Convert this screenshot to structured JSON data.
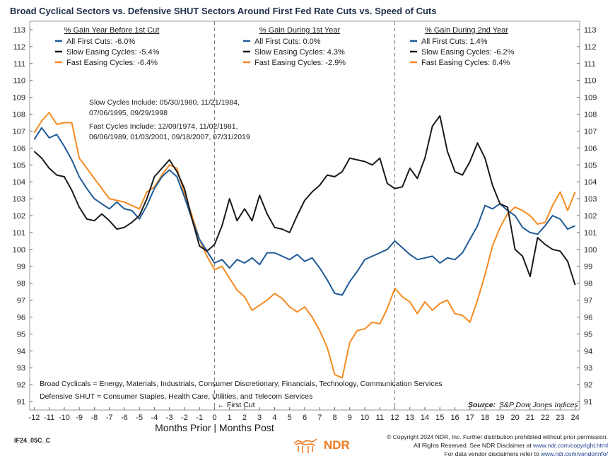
{
  "title": "Broad Cyclical Sectors vs. Defensive SHUT Sectors Around First Fed Rate Cuts vs. Speed of Cuts",
  "colors": {
    "all_first_cuts": "#1f5a96",
    "slow_easing": "#1a1a1a",
    "fast_easing": "#f68a1f",
    "title": "#1f2f4a",
    "dashed_line": "#7a7a7a"
  },
  "legend_blocks": [
    {
      "heading": "% Gain Year Before 1st Cut",
      "entries": [
        {
          "label": "All First Cuts: -6.0%"
        },
        {
          "label": "Slow Easing Cycles: -5.4%"
        },
        {
          "label": "Fast Easing Cycles: -6.4%"
        }
      ]
    },
    {
      "heading": "% Gain During 1st Year",
      "entries": [
        {
          "label": "All First Cuts: 0.0%"
        },
        {
          "label": "Slow Easing Cycles: 4.3%"
        },
        {
          "label": "Fast Easing Cycles: -2.9%"
        }
      ]
    },
    {
      "heading": "% Gain During 2nd Year",
      "entries": [
        {
          "label": "All First Cuts: 1.4%"
        },
        {
          "label": "Slow Easing Cycles: -6.2%"
        },
        {
          "label": "Fast Easing Cycles: 6.4%"
        }
      ]
    }
  ],
  "notes": {
    "slow_cycles": [
      "Slow Cycles Include: 05/30/1980, 11/21/1984,",
      "07/06/1995, 09/29/1998"
    ],
    "fast_cycles": [
      "Fast Cycles Include: 12/09/1974, 11/02/1981,",
      "06/06/1989, 01/03/2001, 09/18/2007, 07/31/2019"
    ],
    "broad_cyclicals": "Broad Cyclicals = Energy, Materials, Industrials, Consumer Discretionary, Financials, Technology, Communication Services",
    "defensive_shut": "Defensive SHUT = Consumer Staples, Health Care, Utilities, and Telecom Services",
    "first_cut": "← First Cut",
    "source_label": "Source:",
    "source_value": "S&P Dow Jones Indices"
  },
  "xlabel": "Months Prior | Months Post",
  "footer": {
    "code": "IF24_05C_C",
    "logo_text": "NDR",
    "copyright_lines": [
      "© Copyright 2024 NDR, Inc. Further distribution prohibited without prior permission.",
      "All Rights Reserved. See NDR Disclaimer at ",
      "For data vendor disclaimers refer to "
    ],
    "links": [
      "www.ndr.com/copyright.html",
      "www.ndr.com/vendorinfo/"
    ]
  },
  "chart_data": {
    "type": "line",
    "title": "Broad Cyclical Sectors vs. Defensive SHUT Sectors Around First Fed Rate Cuts vs. Speed of Cuts",
    "xlabel": "Months Prior | Months Post",
    "ylabel": "",
    "xlim": [
      -12.3,
      24.3
    ],
    "ylim": [
      90.5,
      113.5
    ],
    "x_ticks": [
      -12,
      -11,
      -10,
      -9,
      -8,
      -7,
      -6,
      -5,
      -4,
      -3,
      -2,
      -1,
      0,
      1,
      2,
      3,
      4,
      5,
      6,
      7,
      8,
      9,
      10,
      11,
      12,
      13,
      14,
      15,
      16,
      17,
      18,
      19,
      20,
      21,
      22,
      23,
      24
    ],
    "y_ticks": [
      91,
      92,
      93,
      94,
      95,
      96,
      97,
      98,
      99,
      100,
      101,
      102,
      103,
      104,
      105,
      106,
      107,
      108,
      109,
      110,
      111,
      112,
      113
    ],
    "vertical_markers": [
      0,
      12
    ],
    "grid": false,
    "series": [
      {
        "name": "All First Cuts",
        "x": [
          -12,
          -11.5,
          -11,
          -10.5,
          -10,
          -9.5,
          -9,
          -8.5,
          -8,
          -7.5,
          -7,
          -6.5,
          -6,
          -5.5,
          -5,
          -4.5,
          -4,
          -3.5,
          -3,
          -2.5,
          -2,
          -1.5,
          -1,
          -0.5,
          0,
          0.5,
          1,
          1.5,
          2,
          2.5,
          3,
          3.5,
          4,
          4.5,
          5,
          5.5,
          6,
          6.5,
          7,
          7.5,
          8,
          8.5,
          9,
          9.5,
          10,
          10.5,
          11,
          11.5,
          12,
          12.5,
          13,
          13.5,
          14,
          14.5,
          15,
          15.5,
          16,
          16.5,
          17,
          17.5,
          18,
          18.5,
          19,
          19.5,
          20,
          20.5,
          21,
          21.5,
          22,
          22.5,
          23,
          23.5,
          24
        ],
        "values": [
          106.5,
          107.2,
          106.6,
          106.8,
          106.1,
          105.3,
          104.3,
          103.6,
          103.0,
          102.7,
          102.4,
          102.8,
          102.4,
          102.3,
          101.8,
          102.6,
          103.6,
          104.3,
          104.7,
          104.3,
          103.1,
          101.8,
          100.6,
          99.9,
          99.2,
          99.4,
          98.9,
          99.4,
          99.2,
          99.5,
          99.1,
          99.8,
          99.8,
          99.6,
          99.4,
          99.7,
          99.3,
          99.5,
          98.9,
          98.2,
          97.4,
          97.3,
          98.1,
          98.7,
          99.4,
          99.6,
          99.8,
          100.0,
          100.5,
          100.1,
          99.7,
          99.4,
          99.5,
          99.6,
          99.2,
          99.5,
          99.4,
          99.8,
          100.6,
          101.4,
          102.6,
          102.4,
          102.7,
          102.3,
          102.0,
          101.3,
          101.0,
          100.9,
          101.4,
          102.0,
          101.8,
          101.2,
          101.4
        ]
      },
      {
        "name": "Slow Easing Cycles",
        "x": [
          -12,
          -11.5,
          -11,
          -10.5,
          -10,
          -9.5,
          -9,
          -8.5,
          -8,
          -7.5,
          -7,
          -6.5,
          -6,
          -5.5,
          -5,
          -4.5,
          -4,
          -3.5,
          -3,
          -2.5,
          -2,
          -1.5,
          -1,
          -0.5,
          0,
          0.5,
          1,
          1.5,
          2,
          2.5,
          3,
          3.5,
          4,
          4.5,
          5,
          5.5,
          6,
          6.5,
          7,
          7.5,
          8,
          8.5,
          9,
          9.5,
          10,
          10.5,
          11,
          11.5,
          12,
          12.5,
          13,
          13.5,
          14,
          14.5,
          15,
          15.5,
          16,
          16.5,
          17,
          17.5,
          18,
          18.5,
          19,
          19.5,
          20,
          20.5,
          21,
          21.5,
          22,
          22.5,
          23,
          23.5,
          24
        ],
        "values": [
          105.8,
          105.4,
          104.8,
          104.4,
          104.3,
          103.5,
          102.5,
          101.8,
          101.7,
          102.1,
          101.7,
          101.2,
          101.3,
          101.6,
          102.0,
          103.0,
          104.3,
          104.8,
          105.3,
          104.6,
          103.6,
          101.8,
          100.2,
          99.9,
          100.3,
          101.4,
          103.0,
          101.7,
          102.4,
          101.7,
          103.2,
          102.1,
          101.3,
          101.2,
          101.0,
          102.0,
          102.9,
          103.4,
          103.8,
          104.4,
          104.3,
          104.6,
          105.4,
          105.3,
          105.2,
          105.0,
          105.4,
          103.9,
          103.6,
          103.7,
          104.8,
          104.2,
          105.4,
          107.3,
          107.9,
          105.8,
          104.6,
          104.4,
          105.2,
          106.3,
          105.4,
          103.8,
          102.7,
          102.5,
          100.0,
          99.6,
          98.4,
          100.7,
          100.3,
          100.0,
          99.9,
          99.3,
          97.9
        ]
      },
      {
        "name": "Fast Easing Cycles",
        "x": [
          -12,
          -11.5,
          -11,
          -10.5,
          -10,
          -9.5,
          -9,
          -8.5,
          -8,
          -7.5,
          -7,
          -6.5,
          -6,
          -5.5,
          -5,
          -4.5,
          -4,
          -3.5,
          -3,
          -2.5,
          -2,
          -1.5,
          -1,
          -0.5,
          0,
          0.5,
          1,
          1.5,
          2,
          2.5,
          3,
          3.5,
          4,
          4.5,
          5,
          5.5,
          6,
          6.5,
          7,
          7.5,
          8,
          8.5,
          9,
          9.5,
          10,
          10.5,
          11,
          11.5,
          12,
          12.5,
          13,
          13.5,
          14,
          14.5,
          15,
          15.5,
          16,
          16.5,
          17,
          17.5,
          18,
          18.5,
          19,
          19.5,
          20,
          20.5,
          21,
          21.5,
          22,
          22.5,
          23,
          23.5,
          24
        ],
        "values": [
          106.9,
          107.6,
          108.1,
          107.4,
          107.5,
          107.5,
          105.4,
          104.8,
          104.2,
          103.6,
          103.0,
          102.9,
          102.8,
          102.6,
          102.4,
          103.4,
          103.7,
          104.4,
          105.0,
          104.8,
          103.3,
          102.0,
          100.6,
          99.6,
          98.8,
          99.0,
          98.3,
          97.6,
          97.2,
          96.4,
          96.7,
          97.0,
          97.4,
          97.1,
          96.6,
          96.3,
          96.6,
          96.0,
          95.2,
          94.2,
          92.6,
          92.4,
          94.5,
          95.2,
          95.3,
          95.7,
          95.6,
          96.5,
          97.7,
          97.2,
          96.9,
          96.2,
          96.9,
          96.4,
          96.8,
          97.0,
          96.2,
          96.1,
          95.7,
          97.0,
          98.5,
          100.2,
          101.3,
          102.1,
          102.5,
          102.3,
          102.0,
          101.5,
          101.6,
          102.6,
          103.4,
          102.3,
          103.4
        ]
      }
    ]
  }
}
